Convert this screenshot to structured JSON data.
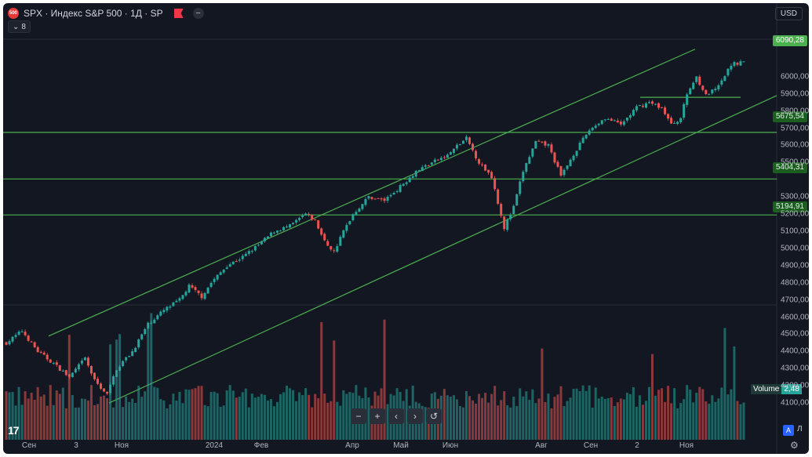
{
  "header": {
    "logo_text": "500",
    "title": "SPX · Индекс S&P 500 · 1Д · SP",
    "indicator_count": "8",
    "currency": "USD"
  },
  "price_tags": {
    "last": "6090,28",
    "level1": "5675,54",
    "level2": "5404,31",
    "level3": "5194,91"
  },
  "volume": {
    "label": "Volume",
    "value": "2,48"
  },
  "nav": {
    "zoom_out": "−",
    "zoom_in": "+",
    "prev": "‹",
    "next": "›",
    "reset": "↺"
  },
  "scale_buttons": {
    "auto": "A",
    "log": "Л"
  },
  "colors": {
    "up": "#26a69a",
    "down": "#ef5350",
    "levels": "#4caf50",
    "background": "#131722"
  },
  "chart_data": {
    "type": "candlestick",
    "symbol": "SPX",
    "interval": "1D",
    "ylim": [
      4060,
      6200
    ],
    "y_ticks": [
      "6000,00",
      "5900,00",
      "5800,00",
      "5700,00",
      "5600,00",
      "5500,00",
      "5300,00",
      "5200,00",
      "5100,00",
      "5000,00",
      "4900,00",
      "4800,00",
      "4700,00",
      "4600,00",
      "4500,00",
      "4400,00",
      "4300,00",
      "4200,00",
      "4100,00"
    ],
    "x_ticks": [
      "Сен",
      "3",
      "Ноя",
      "2024",
      "Фев",
      "Апр",
      "Май",
      "Июн",
      "Авг",
      "Сен",
      "2",
      "Ноя"
    ],
    "close_path": [
      [
        0,
        4450
      ],
      [
        5,
        4520
      ],
      [
        10,
        4400
      ],
      [
        15,
        4330
      ],
      [
        20,
        4250
      ],
      [
        25,
        4360
      ],
      [
        28,
        4230
      ],
      [
        32,
        4150
      ],
      [
        35,
        4300
      ],
      [
        40,
        4400
      ],
      [
        45,
        4560
      ],
      [
        50,
        4640
      ],
      [
        55,
        4700
      ],
      [
        58,
        4780
      ],
      [
        62,
        4720
      ],
      [
        65,
        4800
      ],
      [
        70,
        4900
      ],
      [
        75,
        4950
      ],
      [
        80,
        5020
      ],
      [
        85,
        5100
      ],
      [
        90,
        5130
      ],
      [
        95,
        5200
      ],
      [
        98,
        5160
      ],
      [
        101,
        5040
      ],
      [
        104,
        4980
      ],
      [
        107,
        5100
      ],
      [
        110,
        5200
      ],
      [
        115,
        5300
      ],
      [
        120,
        5280
      ],
      [
        125,
        5360
      ],
      [
        130,
        5450
      ],
      [
        135,
        5500
      ],
      [
        140,
        5540
      ],
      [
        142,
        5580
      ],
      [
        146,
        5640
      ],
      [
        150,
        5500
      ],
      [
        154,
        5420
      ],
      [
        158,
        5120
      ],
      [
        161,
        5240
      ],
      [
        164,
        5450
      ],
      [
        168,
        5620
      ],
      [
        172,
        5600
      ],
      [
        176,
        5420
      ],
      [
        180,
        5550
      ],
      [
        185,
        5690
      ],
      [
        190,
        5760
      ],
      [
        195,
        5720
      ],
      [
        200,
        5820
      ],
      [
        204,
        5850
      ],
      [
        208,
        5820
      ],
      [
        211,
        5720
      ],
      [
        214,
        5760
      ],
      [
        216,
        5900
      ],
      [
        219,
        6000
      ],
      [
        222,
        5890
      ],
      [
        226,
        5940
      ],
      [
        230,
        6070
      ],
      [
        234,
        6090.28
      ]
    ],
    "horizontal_levels": [
      5675.54,
      5404.31,
      5194.91,
      5880
    ],
    "last_price": 6090.28,
    "volume_last": 2.48
  }
}
